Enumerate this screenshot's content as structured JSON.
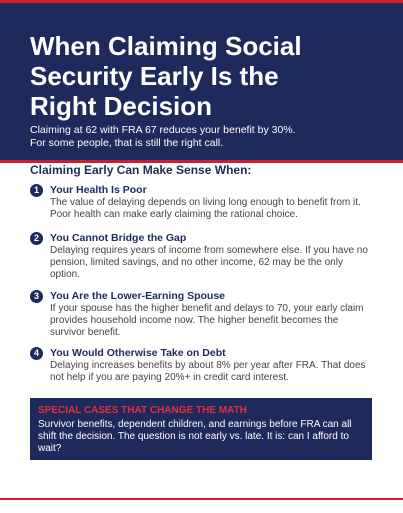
{
  "header": {
    "title": [
      "When Claiming Social",
      "Security Early Is the",
      "Right Decision"
    ],
    "subtitle": [
      "Claiming at 62 with FRA 67 reduces your benefit by 30%.",
      "For some people, that is still the right call."
    ]
  },
  "section_heading": "Claiming Early Can Make Sense When:",
  "items": [
    {
      "number": "1",
      "title": "Your Health Is Poor",
      "body": "The value of delaying depends on living long enough to benefit from it. Poor health can make early claiming the rational choice."
    },
    {
      "number": "2",
      "title": "You Cannot Bridge the Gap",
      "body": "Delaying requires years of income from somewhere else. If you have no pension, limited savings, and no other income, 62 may be the only option."
    },
    {
      "number": "3",
      "title": "You Are the Lower-Earning Spouse",
      "body": "If your spouse has the higher benefit and delays to 70, your early claim provides household income now. The higher benefit becomes the survivor benefit."
    },
    {
      "number": "4",
      "title": "You Would Otherwise Take on Debt",
      "body": "Delaying increases benefits by about 8% per year after FRA. That does not help if you are paying 20%+ in credit card interest."
    }
  ],
  "callout": {
    "heading": "SPECIAL CASES THAT CHANGE THE MATH",
    "body": "Survivor benefits, dependent children, and earnings before FRA can all shift the decision. The question is not early vs. late. It is: can I afford to wait?"
  }
}
